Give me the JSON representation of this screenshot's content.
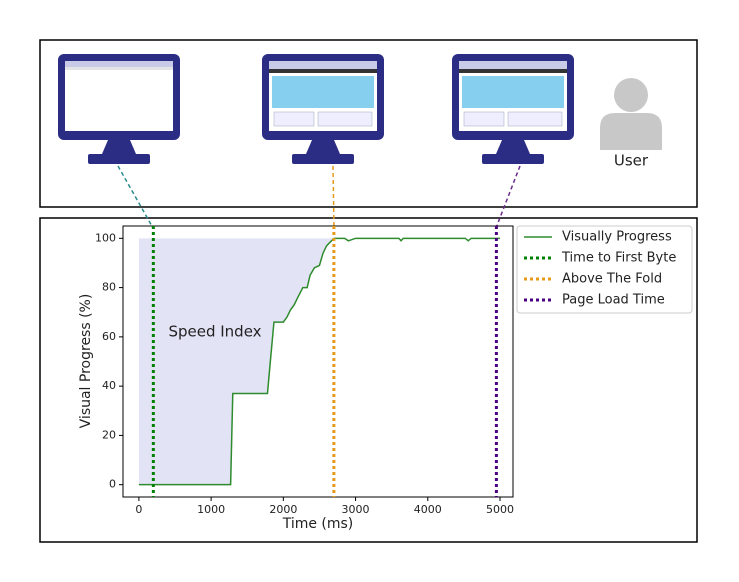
{
  "diagram": {
    "user_label": "User"
  },
  "chart_data": {
    "type": "line",
    "x_label": "Time (ms)",
    "y_label": "Visual Progress (%)",
    "annotation": "Speed Index",
    "xlim": [
      -220,
      5180
    ],
    "ylim": [
      -5,
      105
    ],
    "xticks": [
      0,
      1000,
      2000,
      3000,
      4000,
      5000
    ],
    "yticks": [
      0,
      20,
      40,
      60,
      80,
      100
    ],
    "legend": "outside-upper-right",
    "series": [
      {
        "name": "Visually Progress",
        "color": "#2e8b2e",
        "x": [
          0,
          1270,
          1300,
          1780,
          1820,
          1870,
          2000,
          2050,
          2100,
          2150,
          2200,
          2270,
          2330,
          2370,
          2430,
          2500,
          2550,
          2600,
          2700,
          2850,
          2900,
          3000,
          3600,
          3630,
          3660,
          4520,
          4560,
          4600,
          5000
        ],
        "values": [
          0,
          0,
          37,
          37,
          50,
          66,
          66,
          68,
          71,
          73,
          76,
          80,
          80,
          85,
          88,
          89,
          94,
          97,
          100,
          100,
          99,
          100,
          100,
          99,
          100,
          100,
          99,
          100,
          100
        ]
      }
    ],
    "markers": [
      {
        "name": "Time to First Byte",
        "color": "#008000",
        "x": 200
      },
      {
        "name": "Above The Fold",
        "color": "#e69a1a",
        "x": 2700
      },
      {
        "name": "Page Load Time",
        "color": "#4b0082",
        "x": 4950
      }
    ]
  }
}
